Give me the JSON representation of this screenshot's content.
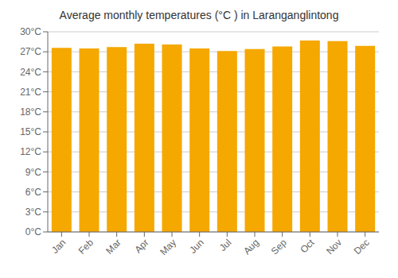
{
  "chart_data": {
    "type": "bar",
    "title": "Average monthly temperatures (°C ) in Laranganglintong",
    "categories": [
      "Jan",
      "Feb",
      "Mar",
      "Apr",
      "May",
      "Jun",
      "Jul",
      "Aug",
      "Sep",
      "Oct",
      "Nov",
      "Dec"
    ],
    "values": [
      27.6,
      27.5,
      27.7,
      28.2,
      28.1,
      27.5,
      27.1,
      27.4,
      27.8,
      28.7,
      28.6,
      27.9
    ],
    "color": "#F5A800",
    "ylim": [
      0,
      30
    ],
    "yticks": [
      {
        "value": 0,
        "label": "0°C"
      },
      {
        "value": 3,
        "label": "3°C"
      },
      {
        "value": 6,
        "label": "6°C"
      },
      {
        "value": 9,
        "label": "9°C"
      },
      {
        "value": 12,
        "label": "12°C"
      },
      {
        "value": 15,
        "label": "15°C"
      },
      {
        "value": 18,
        "label": "18°C"
      },
      {
        "value": 21,
        "label": "21°C"
      },
      {
        "value": 24,
        "label": "24°C"
      },
      {
        "value": 27,
        "label": "27°C"
      },
      {
        "value": 30,
        "label": "30°C"
      }
    ],
    "grid": true
  }
}
